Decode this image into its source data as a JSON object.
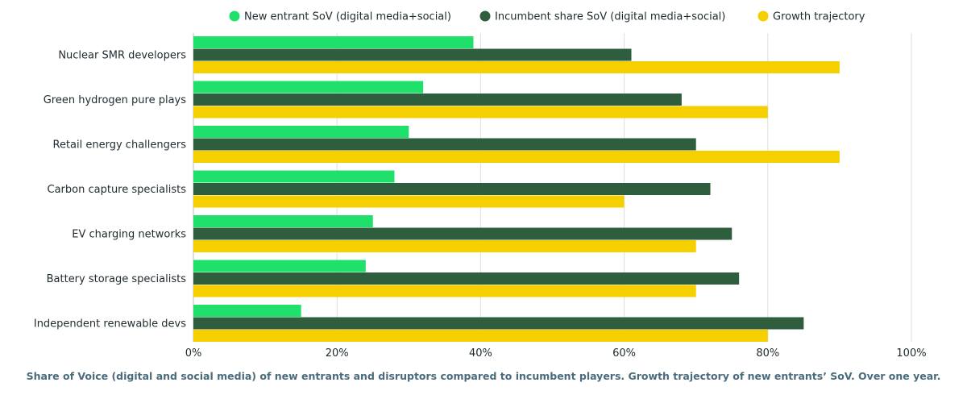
{
  "chart_data": {
    "type": "bar",
    "orientation": "horizontal",
    "categories": [
      "Nuclear SMR developers",
      "Green hydrogen pure plays",
      "Retail energy challengers",
      "Carbon capture specialists",
      "EV charging networks",
      "Battery storage specialists",
      "Independent renewable devs"
    ],
    "series": [
      {
        "name": "New entrant SoV (digital media+social)",
        "color": "#1ee06a",
        "values": [
          39,
          32,
          30,
          28,
          25,
          24,
          15
        ]
      },
      {
        "name": "Incumbent share SoV (digital media+social)",
        "color": "#2e5e3e",
        "values": [
          61,
          68,
          70,
          72,
          75,
          76,
          85
        ]
      },
      {
        "name": "Growth trajectory",
        "color": "#f6cf00",
        "values": [
          90,
          80,
          90,
          60,
          70,
          70,
          80
        ]
      }
    ],
    "xlim": [
      0,
      100
    ],
    "xticks": [
      "0%",
      "20%",
      "40%",
      "60%",
      "80%",
      "100%"
    ],
    "xtick_values": [
      0,
      20,
      40,
      60,
      80,
      100
    ],
    "grid": true,
    "legend_position": "top-center",
    "caption": "Share of Voice (digital and social media) of new entrants and disruptors compared to incumbent players. Growth trajectory of new entrants’ SoV. Over one year."
  }
}
